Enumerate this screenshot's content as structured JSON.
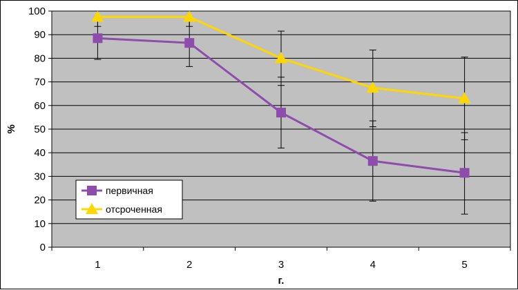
{
  "chart_data": {
    "type": "line",
    "title": "",
    "xlabel": "г.",
    "ylabel": "%",
    "categories": [
      "1",
      "2",
      "3",
      "4",
      "5"
    ],
    "ylim": [
      0,
      100
    ],
    "yticks": [
      0,
      10,
      20,
      30,
      40,
      50,
      60,
      70,
      80,
      90,
      100
    ],
    "grid": "horizontal",
    "legend_position": "bottom-left",
    "series": [
      {
        "name": "первичная",
        "color": "#8e4cad",
        "marker": "square",
        "values": [
          88.5,
          86.5,
          57,
          36.5,
          31.5
        ],
        "error_low": [
          79.5,
          76.5,
          42,
          19.5,
          14
        ],
        "error_high": [
          97.5,
          96.5,
          72,
          53.5,
          48.5
        ]
      },
      {
        "name": "отсроченная",
        "color": "#ffd700",
        "marker": "triangle",
        "values": [
          97.5,
          97.5,
          80,
          67.5,
          63
        ],
        "error_low": [
          93.5,
          93.5,
          68.5,
          51,
          45.5
        ],
        "error_high": [
          100,
          100,
          91.5,
          83.5,
          80.5
        ]
      }
    ],
    "colors": {
      "plot_background": "#c0c0c0",
      "gridline": "#000000",
      "axis": "#000000"
    }
  }
}
